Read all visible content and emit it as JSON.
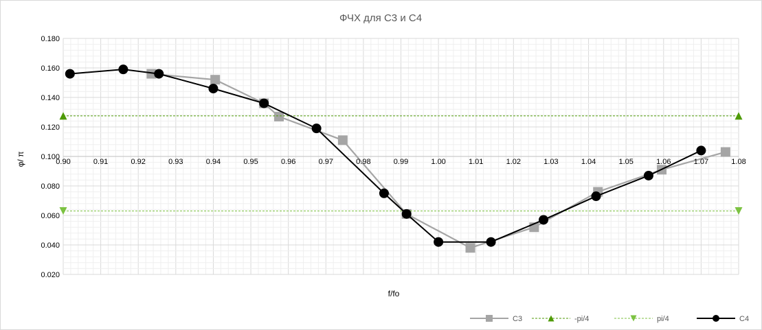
{
  "chart_data": {
    "type": "scatter",
    "title": "ФЧХ для C3 и C4",
    "xlabel": "f/fo",
    "ylabel": "φ/ π",
    "xlim": [
      0.9,
      1.08
    ],
    "ylim": [
      0.02,
      0.18
    ],
    "x_ticks": [
      "0.90",
      "0.91",
      "0.92",
      "0.93",
      "0.94",
      "0.95",
      "0.96",
      "0.97",
      "0.98",
      "0.99",
      "1.00",
      "1.01",
      "1.02",
      "1.03",
      "1.04",
      "1.05",
      "1.06",
      "1.07",
      "1.08"
    ],
    "y_ticks": [
      "0.020",
      "0.040",
      "0.060",
      "0.080",
      "0.100",
      "0.120",
      "0.140",
      "0.160",
      "0.180"
    ],
    "x_axis_crosses_at": 0.1,
    "grid": true,
    "legend_position": "bottom-right",
    "series": [
      {
        "name": "C3",
        "color": "#a5a5a5",
        "marker": "square",
        "line": "solid",
        "x": [
          0.9235,
          0.9405,
          0.9535,
          0.9575,
          0.9745,
          0.9915,
          1.0085,
          1.0255,
          1.0425,
          1.0595,
          1.0765
        ],
        "y": [
          0.156,
          0.152,
          0.136,
          0.127,
          0.111,
          0.061,
          0.038,
          0.052,
          0.076,
          0.091,
          0.103
        ]
      },
      {
        "name": "-pi/4",
        "color": "#4e9a06",
        "marker": "triangle-up",
        "line": "dashed",
        "x": [
          0.9,
          1.08
        ],
        "y": [
          0.1275,
          0.1275
        ]
      },
      {
        "name": "pi/4",
        "color": "#7cc242",
        "marker": "triangle-down",
        "line": "dashed",
        "x": [
          0.9,
          1.08
        ],
        "y": [
          0.063,
          0.063
        ]
      },
      {
        "name": "C4",
        "color": "#000000",
        "marker": "circle",
        "line": "solid",
        "x": [
          0.9018,
          0.916,
          0.9255,
          0.94,
          0.9535,
          0.9675,
          0.9855,
          0.9915,
          1.0,
          1.014,
          1.028,
          1.042,
          1.056,
          1.07
        ],
        "y": [
          0.156,
          0.159,
          0.156,
          0.146,
          0.136,
          0.119,
          0.075,
          0.061,
          0.042,
          0.042,
          0.057,
          0.073,
          0.087,
          0.104
        ]
      }
    ]
  }
}
